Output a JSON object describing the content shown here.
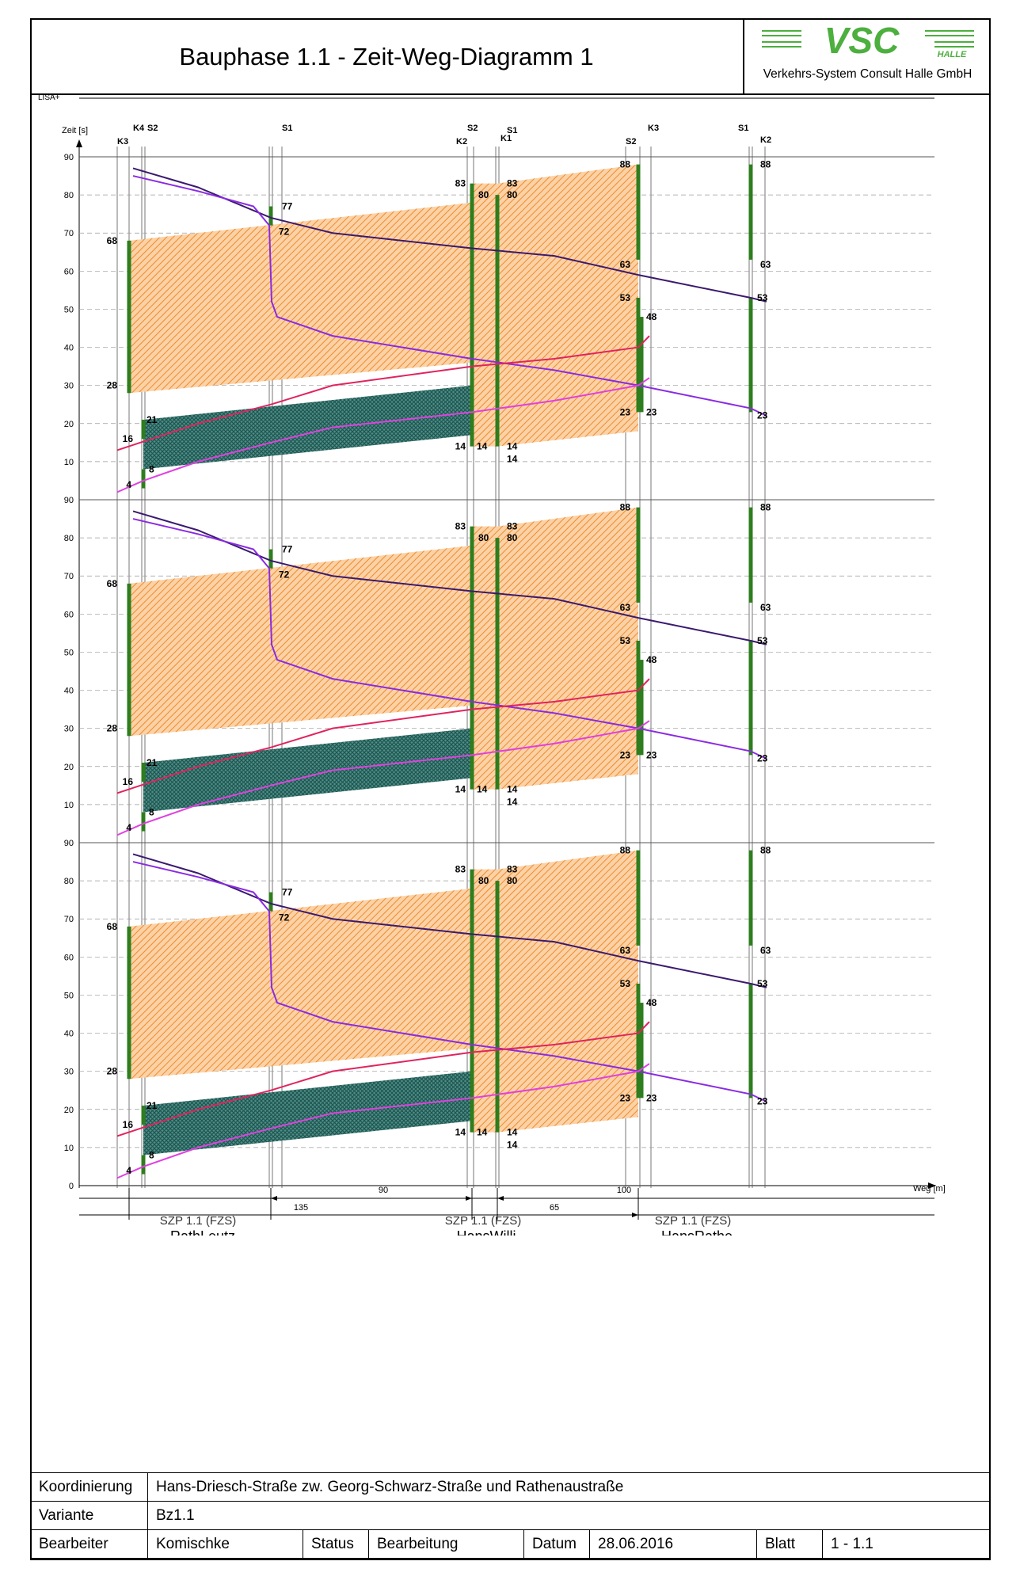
{
  "header": {
    "title": "Bauphase 1.1 - Zeit-Weg-Diagramm 1",
    "logo_text": "VSC",
    "logo_halle": "HALLE",
    "logo_subtitle": "Verkehrs-System Consult Halle GmbH",
    "logo_color": "#4caf3e"
  },
  "diagram": {
    "lisa_label": "LISA+",
    "y_axis_label": "Zeit [s]",
    "x_axis_label": "Weg [m]",
    "y_ticks": [
      0,
      10,
      20,
      30,
      40,
      50,
      60,
      70,
      80,
      90
    ],
    "cycle_time": 90,
    "panels": 3,
    "colors": {
      "green_phase": "#2e7d1e",
      "band_orange": "#f4a460",
      "band_teal": "#2e6f68",
      "line_darkpurple": "#3b1a6e",
      "line_violet": "#8a2be2",
      "line_red": "#e0245e",
      "line_magenta": "#e040e0"
    },
    "signal_heads": [
      {
        "name": "K4",
        "pos": "RathLeutz"
      },
      {
        "name": "S2",
        "pos": "RathLeutz"
      },
      {
        "name": "K3",
        "pos": "RathLeutz"
      },
      {
        "name": "S1",
        "pos": "mid"
      },
      {
        "name": "S2",
        "pos": "HansWilli"
      },
      {
        "name": "K2",
        "pos": "HansWilli"
      },
      {
        "name": "S1",
        "pos": "HansWilli"
      },
      {
        "name": "K1",
        "pos": "HansWilli"
      },
      {
        "name": "K3",
        "pos": "HansRathe"
      },
      {
        "name": "S2",
        "pos": "HansRathe"
      },
      {
        "name": "S1",
        "pos": "end"
      },
      {
        "name": "K2",
        "pos": "end"
      }
    ],
    "green_times": [
      {
        "signal": "K4 (RathLeutz)",
        "start": 28,
        "end": 68
      },
      {
        "signal": "K3 (RathLeutz)",
        "start": 16,
        "end": 21
      },
      {
        "signal": "K3 (RathLeutz)",
        "start": 4,
        "end": 8
      },
      {
        "signal": "S1 (mid)",
        "start": 72,
        "end": 77
      },
      {
        "signal": "K2 (HansWilli)",
        "start": 14,
        "end": 83
      },
      {
        "signal": "K1 (HansWilli)",
        "start": 14,
        "end": 80
      },
      {
        "signal": "K1 (HansWilli)",
        "start": 14,
        "end": 83
      },
      {
        "signal": "K3 (HansRathe)",
        "start": 63,
        "end": 88
      },
      {
        "signal": "K3 (HansRathe)",
        "start": 23,
        "end": 53
      },
      {
        "signal": "S2 (HansRathe)",
        "start": 23,
        "end": 48
      },
      {
        "signal": "K2 (end)",
        "start": 63,
        "end": 88
      },
      {
        "signal": "K2 (end)",
        "start": 23,
        "end": 53
      }
    ],
    "distances": [
      {
        "label": "135"
      },
      {
        "label": "90"
      },
      {
        "label": "65"
      },
      {
        "label": "100"
      }
    ],
    "intersections": [
      {
        "plan": "SZP 1.1 (FZS)",
        "name": "RathLeutz",
        "variant": "Bz1.1"
      },
      {
        "plan": "SZP 1.1 (FZS)",
        "name": "HansWilli",
        "variant": "Bz1.1"
      },
      {
        "plan": "SZP 1.1 (FZS)",
        "name": "HansRathe",
        "variant": "Bz1.1"
      }
    ]
  },
  "info": {
    "koordinierung_label": "Koordinierung",
    "koordinierung_value": "Hans-Driesch-Straße zw. Georg-Schwarz-Straße und Rathenaustraße",
    "variante_label": "Variante",
    "variante_value": "Bz1.1",
    "bearbeiter_label": "Bearbeiter",
    "bearbeiter_value": "Komischke",
    "status_label": "Status",
    "status_value": "Bearbeitung",
    "datum_label": "Datum",
    "datum_value": "28.06.2016",
    "blatt_label": "Blatt",
    "blatt_value": "1 - 1.1"
  }
}
